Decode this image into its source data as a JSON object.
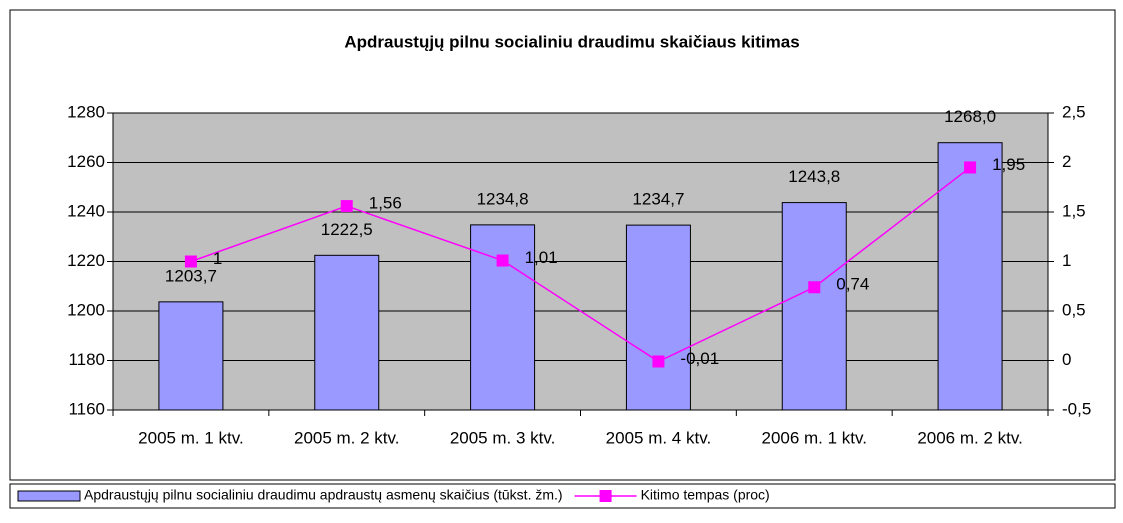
{
  "chart_data": {
    "type": "bar",
    "title": "Apdraustųjų pilnu socialiniu draudimu skaičiaus kitimas",
    "categories": [
      "2005 m. 1 ktv.",
      "2005 m. 2 ktv.",
      "2005 m. 3 ktv.",
      "2005 m. 4 ktv.",
      "2006 m. 1 ktv.",
      "2006 m. 2 ktv."
    ],
    "series": [
      {
        "name": "Apdraustųjų pilnu socialiniu draudimu apdraustų asmenų skaičius (tūkst. žm.)",
        "type": "bar",
        "color": "#9999ff",
        "values": [
          1203.7,
          1222.5,
          1234.8,
          1234.7,
          1243.8,
          1268.0
        ],
        "value_labels": [
          "1203,7",
          "1222,5",
          "1234,8",
          "1234,7",
          "1243,8",
          "1268,0"
        ]
      },
      {
        "name": "Kitimo tempas (proc)",
        "type": "line",
        "axis": "y2",
        "color": "#ff00ff",
        "values": [
          1,
          1.56,
          1.01,
          -0.01,
          0.74,
          1.95
        ],
        "value_labels": [
          "1",
          "1,56",
          "1,01",
          "-0,01",
          "0,74",
          "1,95"
        ]
      }
    ],
    "ylim": [
      1160,
      1280
    ],
    "yticks": [
      1160,
      1180,
      1200,
      1220,
      1240,
      1260,
      1280
    ],
    "y2lim": [
      -0.5,
      2.5
    ],
    "y2ticks": [
      {
        "value": -0.5,
        "label": "-0,5"
      },
      0,
      {
        "value": 0.5,
        "label": "0,5"
      },
      1,
      {
        "value": 1.5,
        "label": "1,5"
      },
      2,
      {
        "value": 2.5,
        "label": "2,5"
      }
    ],
    "grid": true,
    "legend": "bottom"
  }
}
